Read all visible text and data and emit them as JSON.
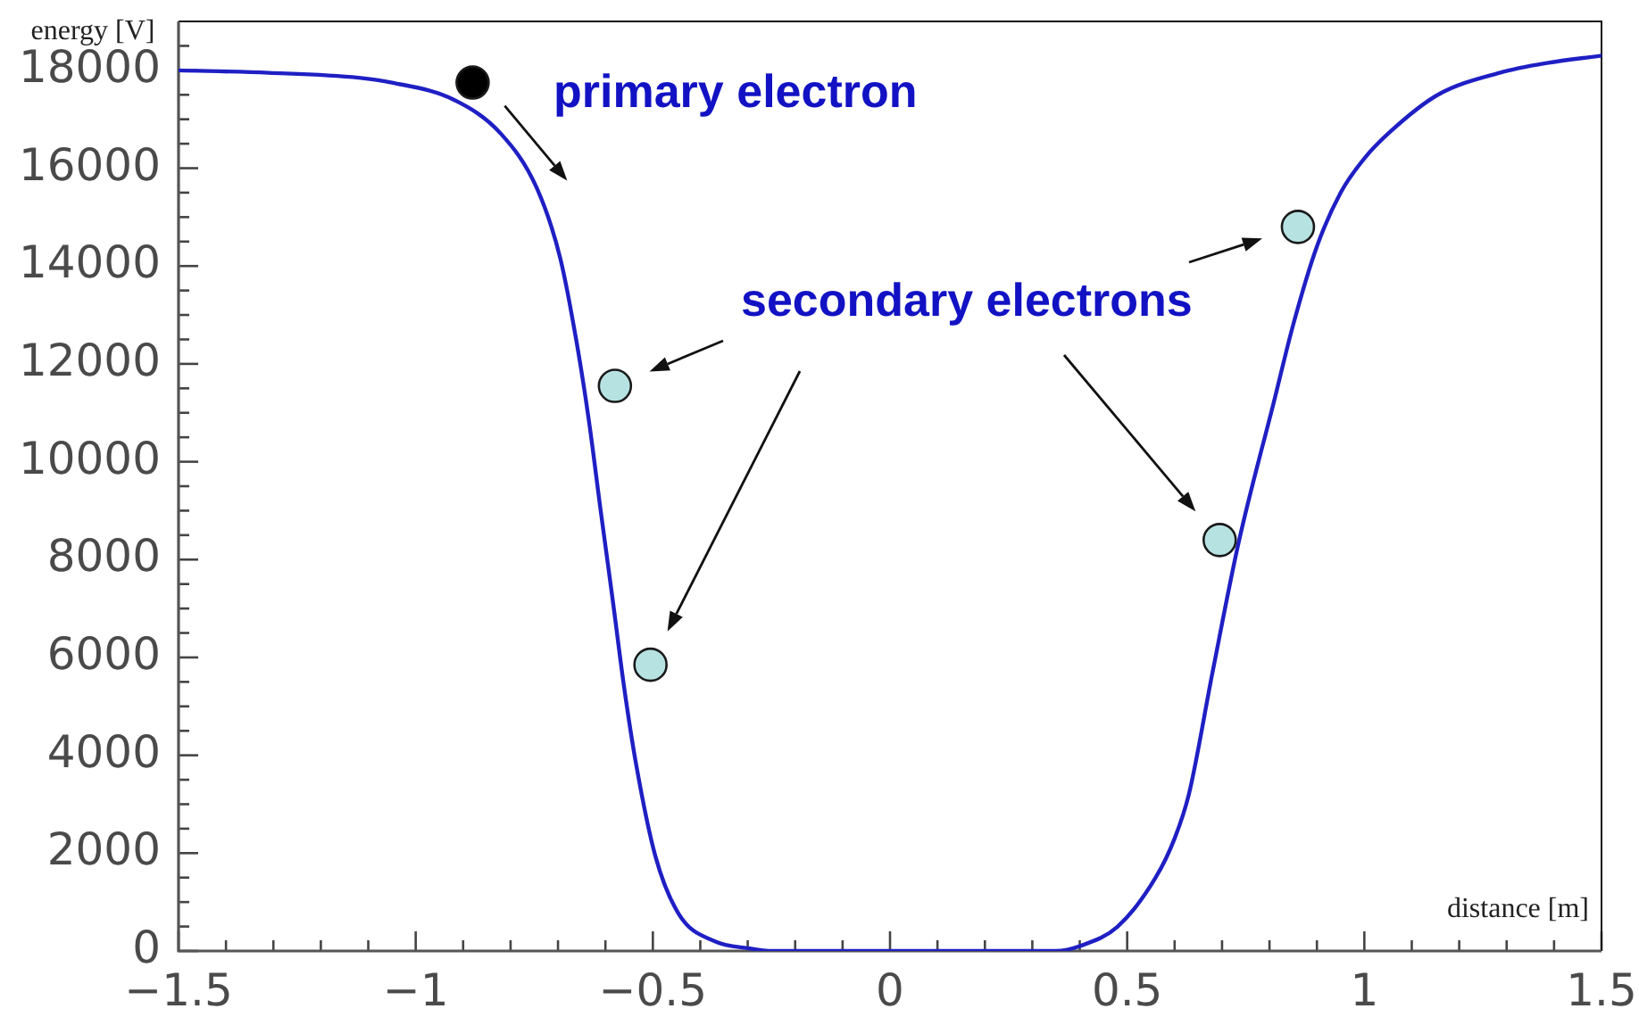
{
  "chart_data": {
    "type": "line",
    "xlabel": "distance [m]",
    "ylabel": "energy [V]",
    "annotations": [
      "primary electron",
      "secondary electrons"
    ],
    "xlim": [
      -1.5,
      1.5
    ],
    "ylim": [
      0,
      19000
    ],
    "xticks": [
      {
        "value": -1.5,
        "label": "−1.5"
      },
      {
        "value": -1.4,
        "label": null
      },
      {
        "value": -1.3,
        "label": null
      },
      {
        "value": -1.2,
        "label": null
      },
      {
        "value": -1.1,
        "label": null
      },
      {
        "value": -1,
        "label": "−1"
      },
      {
        "value": -0.9,
        "label": null
      },
      {
        "value": -0.8,
        "label": null
      },
      {
        "value": -0.7,
        "label": null
      },
      {
        "value": -0.6,
        "label": null
      },
      {
        "value": -0.5,
        "label": "−0.5"
      },
      {
        "value": -0.4,
        "label": null
      },
      {
        "value": -0.3,
        "label": null
      },
      {
        "value": -0.2,
        "label": null
      },
      {
        "value": -0.1,
        "label": null
      },
      0,
      {
        "value": 0.1,
        "label": null
      },
      {
        "value": 0.2,
        "label": null
      },
      {
        "value": 0.3,
        "label": null
      },
      {
        "value": 0.4,
        "label": null
      },
      0.5,
      {
        "value": 0.6,
        "label": null
      },
      {
        "value": 0.7,
        "label": null
      },
      {
        "value": 0.8,
        "label": null
      },
      {
        "value": 0.9,
        "label": null
      },
      1,
      {
        "value": 1.1,
        "label": null
      },
      {
        "value": 1.2,
        "label": null
      },
      {
        "value": 1.3,
        "label": null
      },
      {
        "value": 1.4,
        "label": null
      },
      1.5
    ],
    "yticks": [
      0,
      {
        "value": 500,
        "label": null
      },
      {
        "value": 1000,
        "label": null
      },
      {
        "value": 1500,
        "label": null
      },
      2000,
      {
        "value": 2500,
        "label": null
      },
      {
        "value": 3000,
        "label": null
      },
      {
        "value": 3500,
        "label": null
      },
      4000,
      {
        "value": 4500,
        "label": null
      },
      {
        "value": 5000,
        "label": null
      },
      {
        "value": 5500,
        "label": null
      },
      6000,
      {
        "value": 6500,
        "label": null
      },
      {
        "value": 7000,
        "label": null
      },
      {
        "value": 7500,
        "label": null
      },
      8000,
      {
        "value": 8500,
        "label": null
      },
      {
        "value": 9000,
        "label": null
      },
      {
        "value": 9500,
        "label": null
      },
      10000,
      {
        "value": 10500,
        "label": null
      },
      {
        "value": 11000,
        "label": null
      },
      {
        "value": 11500,
        "label": null
      },
      12000,
      {
        "value": 12500,
        "label": null
      },
      {
        "value": 13000,
        "label": null
      },
      {
        "value": 13500,
        "label": null
      },
      14000,
      {
        "value": 14500,
        "label": null
      },
      {
        "value": 15000,
        "label": null
      },
      {
        "value": 15500,
        "label": null
      },
      16000,
      {
        "value": 16500,
        "label": null
      },
      {
        "value": 17000,
        "label": null
      },
      {
        "value": 17500,
        "label": null
      },
      18000,
      {
        "value": 18500,
        "label": null
      }
    ],
    "series": [
      {
        "color": "#1f1fc4",
        "marker": "none",
        "x": [
          -1.5,
          -1.31,
          -1.12,
          -1.05,
          -0.92,
          -0.82,
          -0.745,
          -0.695,
          -0.66,
          -0.635,
          -0.61,
          -0.585,
          -0.56,
          -0.535,
          -0.495,
          -0.445,
          -0.37,
          -0.295,
          -0.25,
          0.35,
          0.4,
          0.48,
          0.56,
          0.6,
          0.63,
          0.68,
          0.735,
          0.81,
          0.85,
          0.9,
          0.95,
          1.0,
          1.055,
          1.155,
          1.285,
          1.385,
          1.5
        ],
        "values": [
          18000,
          17950,
          17850,
          17750,
          17400,
          16700,
          15600,
          14150,
          12400,
          10850,
          9000,
          7200,
          5350,
          3800,
          1950,
          750,
          200,
          50,
          0,
          0,
          100,
          500,
          1500,
          2300,
          3200,
          5700,
          8350,
          11250,
          12800,
          14400,
          15500,
          16200,
          16750,
          17500,
          17950,
          18150,
          18300
        ]
      },
      {
        "type": "scatter",
        "color": "#000000",
        "marker": "circle",
        "x": [
          -0.88
        ],
        "values": [
          17750
        ]
      },
      {
        "type": "scatter",
        "color": "#b7e2e2",
        "marker": "circle",
        "x": [
          -0.58,
          -0.505,
          0.695,
          0.86
        ],
        "values": [
          11550,
          5850,
          8400,
          14800
        ]
      }
    ]
  }
}
